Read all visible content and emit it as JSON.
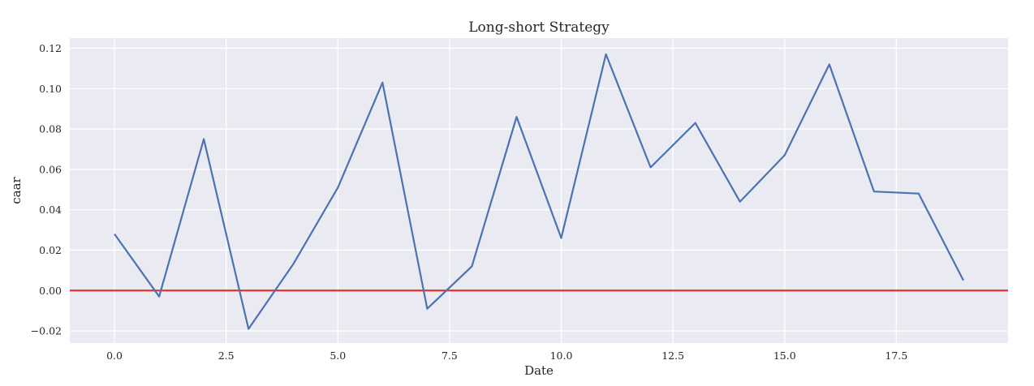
{
  "chart_data": {
    "type": "line",
    "title": "Long-short Strategy",
    "xlabel": "Date",
    "ylabel": "caar",
    "xlim": [
      -1,
      20
    ],
    "ylim": [
      -0.026,
      0.125
    ],
    "x_ticks": [
      0.0,
      2.5,
      5.0,
      7.5,
      10.0,
      12.5,
      15.0,
      17.5
    ],
    "x_tick_labels": [
      "0.0",
      "2.5",
      "5.0",
      "7.5",
      "10.0",
      "12.5",
      "15.0",
      "17.5"
    ],
    "y_ticks": [
      -0.02,
      0.0,
      0.02,
      0.04,
      0.06,
      0.08,
      0.1,
      0.12
    ],
    "y_tick_labels": [
      "−0.02",
      "0.00",
      "0.02",
      "0.04",
      "0.06",
      "0.08",
      "0.10",
      "0.12"
    ],
    "grid": true,
    "legend": "none",
    "background_color": "#eaeaf2",
    "series": [
      {
        "color": "#4c72b0",
        "x": [
          0,
          1,
          2,
          3,
          4,
          5,
          6,
          7,
          8,
          9,
          10,
          11,
          12,
          13,
          14,
          15,
          16,
          17,
          18,
          19
        ],
        "values": [
          0.028,
          -0.003,
          0.075,
          -0.019,
          0.013,
          0.051,
          0.103,
          -0.009,
          0.012,
          0.086,
          0.026,
          0.117,
          0.061,
          0.083,
          0.044,
          0.067,
          0.112,
          0.049,
          0.048,
          0.005
        ]
      }
    ],
    "reference_line": {
      "y": 0.0,
      "color": "#e8302a"
    }
  }
}
